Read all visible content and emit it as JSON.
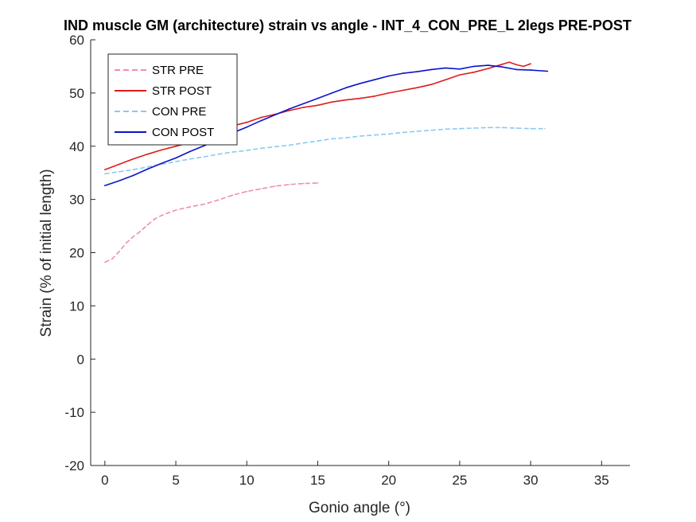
{
  "chart_data": {
    "type": "line",
    "title": "IND muscle GM (architecture) strain vs angle - INT_4_CON_PRE_L 2legs PRE-POST",
    "xlabel": "Gonio angle (°)",
    "ylabel": "Strain (% of initial length)",
    "xlim": [
      -1,
      37
    ],
    "ylim": [
      -20,
      60
    ],
    "xticks": [
      0,
      5,
      10,
      15,
      20,
      25,
      30,
      35
    ],
    "yticks": [
      -20,
      -10,
      0,
      10,
      20,
      30,
      40,
      50,
      60
    ],
    "grid": false,
    "legend_position": "top-left",
    "series": [
      {
        "name": "STR PRE",
        "color": "#f08cb5",
        "dash": "dashed",
        "x": [
          0,
          0.5,
          1,
          1.5,
          2,
          2.5,
          3,
          3.5,
          4,
          4.5,
          5,
          6,
          7,
          8,
          9,
          10,
          11,
          12,
          13,
          14,
          15
        ],
        "y": [
          18.2,
          18.8,
          20.2,
          21.8,
          23.0,
          24.0,
          25.2,
          26.3,
          27.0,
          27.5,
          28.0,
          28.6,
          29.1,
          29.9,
          30.8,
          31.5,
          32.0,
          32.5,
          32.8,
          33.0,
          33.1
        ]
      },
      {
        "name": "STR POST",
        "color": "#dd1c1c",
        "dash": "solid",
        "x": [
          0,
          1,
          2,
          3,
          4,
          5,
          6,
          7,
          8,
          9,
          10,
          11,
          12,
          13,
          14,
          15,
          16,
          17,
          18,
          19,
          20,
          21,
          22,
          23,
          24,
          25,
          26,
          27,
          28,
          28.5,
          29,
          29.5,
          30
        ],
        "y": [
          35.6,
          36.6,
          37.6,
          38.5,
          39.3,
          40.0,
          40.7,
          41.7,
          42.8,
          43.8,
          44.5,
          45.4,
          46.0,
          46.7,
          47.3,
          47.7,
          48.3,
          48.7,
          49.0,
          49.4,
          50.0,
          50.5,
          51.0,
          51.6,
          52.5,
          53.4,
          53.9,
          54.6,
          55.4,
          55.8,
          55.3,
          55.0,
          55.5
        ]
      },
      {
        "name": "CON PRE",
        "color": "#8ccaf0",
        "dash": "dashed",
        "x": [
          0,
          1,
          2,
          3,
          4,
          5,
          6,
          7,
          8,
          9,
          10,
          11,
          12,
          13,
          14,
          15,
          16,
          17,
          18,
          19,
          20,
          21,
          22,
          23,
          24,
          25,
          26,
          27,
          28,
          29,
          30,
          31
        ],
        "y": [
          34.8,
          35.2,
          35.6,
          36.1,
          36.6,
          37.1,
          37.6,
          38.0,
          38.5,
          38.9,
          39.2,
          39.6,
          39.9,
          40.2,
          40.6,
          41.0,
          41.4,
          41.6,
          41.9,
          42.1,
          42.3,
          42.6,
          42.8,
          43.0,
          43.2,
          43.3,
          43.4,
          43.5,
          43.5,
          43.4,
          43.3,
          43.3
        ]
      },
      {
        "name": "CON POST",
        "color": "#0b14c8",
        "dash": "solid",
        "x": [
          0,
          1,
          2,
          3,
          4,
          5,
          6,
          7,
          8,
          9,
          10,
          11,
          12,
          13,
          14,
          15,
          16,
          17,
          18,
          19,
          20,
          21,
          22,
          23,
          24,
          25,
          26,
          27,
          28,
          29,
          30,
          31.2
        ],
        "y": [
          32.6,
          33.5,
          34.5,
          35.7,
          36.8,
          37.8,
          39.0,
          40.1,
          41.3,
          42.5,
          43.6,
          44.8,
          45.9,
          47.0,
          48.0,
          49.0,
          50.0,
          51.0,
          51.8,
          52.5,
          53.2,
          53.7,
          54.0,
          54.4,
          54.7,
          54.5,
          55.0,
          55.2,
          54.9,
          54.4,
          54.3,
          54.1
        ]
      }
    ]
  }
}
